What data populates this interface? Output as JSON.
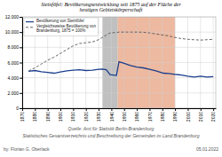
{
  "chart_data": {
    "type": "line",
    "title": "Steinföfel: Bevölkerungsentwicklung seit 1875 auf der Fläche der\nheutigen Gebietskörperschaft",
    "x": [
      1875,
      1880,
      1885,
      1890,
      1895,
      1900,
      1905,
      1910,
      1915,
      1920,
      1925,
      1930,
      1933,
      1936,
      1939,
      1944,
      1946,
      1950,
      1955,
      1960,
      1965,
      1970,
      1975,
      1981,
      1985,
      1990,
      1993,
      1995,
      2000,
      2005,
      2010,
      2015,
      2020
    ],
    "series": [
      {
        "name": "Bevölkerung von Steinföfel",
        "color": "#1a3e8c",
        "line_style": "solid",
        "values": [
          4850,
          4950,
          4800,
          4700,
          4600,
          4750,
          4900,
          5000,
          5050,
          4950,
          5000,
          5100,
          5150,
          5050,
          4400,
          4300,
          6100,
          5900,
          5600,
          5400,
          5300,
          5100,
          4900,
          4600,
          4550,
          4450,
          4400,
          4350,
          4200,
          4100,
          4200,
          4100,
          4150
        ]
      },
      {
        "name": "Vergleichsweise Bevölkerung von\nBrandenburg, 1875 = 100%",
        "color": "#555555",
        "line_style": "dashed",
        "values": [
          4900,
          5300,
          5800,
          6300,
          6700,
          7200,
          7700,
          8200,
          8500,
          8600,
          8700,
          9000,
          9300,
          9600,
          9900,
          9950,
          10000,
          10000,
          10000,
          10000,
          9980,
          9900,
          9750,
          9600,
          9500,
          9300,
          9200,
          9150,
          9050,
          9000,
          8950,
          9000,
          9050
        ]
      }
    ],
    "shaded_ranges": [
      {
        "start": 1933,
        "end": 1945,
        "color": "#b0b0b0"
      },
      {
        "start": 1945,
        "end": 1990,
        "color": "#e8a888"
      }
    ],
    "xlim": [
      1870,
      2022
    ],
    "xticks": [
      1870,
      1880,
      1890,
      1900,
      1910,
      1920,
      1930,
      1940,
      1950,
      1960,
      1970,
      1980,
      1990,
      2000,
      2010,
      2020
    ],
    "ylim": [
      0,
      12000
    ],
    "yticks": [
      0,
      {
        "value": 2000,
        "label": "2.000"
      },
      {
        "value": 4000,
        "label": "4.000"
      },
      {
        "value": 6000,
        "label": "6.000"
      },
      {
        "value": 8000,
        "label": "8.000"
      },
      {
        "value": 10000,
        "label": "10.000"
      },
      {
        "value": 12000,
        "label": "12.000"
      }
    ],
    "grid": true,
    "legend": "upper left",
    "annotations": [
      "Quelle: Amt für Statistik Berlin-Brandenburg",
      "Statistisches Gesamtverzeichnis und Beschreibung der Gemeinden im Land Brandenburg",
      "by: Florian G. Oberlack",
      "05.01.2022"
    ]
  }
}
